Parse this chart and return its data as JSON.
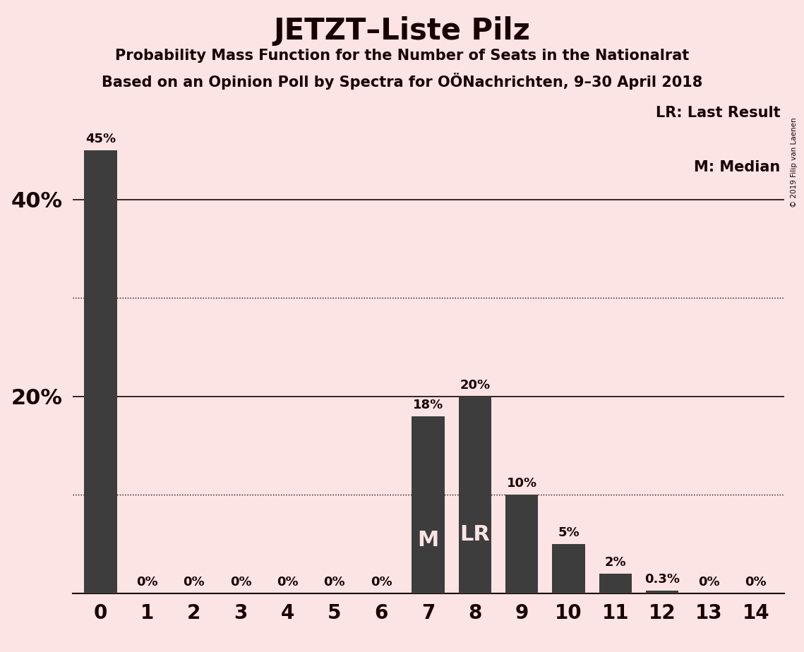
{
  "title": "JETZT–Liste Pilz",
  "subtitle1": "Probability Mass Function for the Number of Seats in the Nationalrat",
  "subtitle2": "Based on an Opinion Poll by Spectra for OÖNachrichten, 9–30 April 2018",
  "copyright": "© 2019 Filip van Laenen",
  "categories": [
    0,
    1,
    2,
    3,
    4,
    5,
    6,
    7,
    8,
    9,
    10,
    11,
    12,
    13,
    14
  ],
  "values": [
    0.45,
    0.0,
    0.0,
    0.0,
    0.0,
    0.0,
    0.0,
    0.18,
    0.2,
    0.1,
    0.05,
    0.02,
    0.003,
    0.0,
    0.0
  ],
  "bar_labels": [
    "45%",
    "0%",
    "0%",
    "0%",
    "0%",
    "0%",
    "0%",
    "18%",
    "20%",
    "10%",
    "5%",
    "2%",
    "0.3%",
    "0%",
    "0%"
  ],
  "bar_color": "#3d3d3d",
  "background_color": "#fce4e4",
  "text_color": "#1a0000",
  "median_bar": 7,
  "last_result_bar": 8,
  "legend_lr": "LR: Last Result",
  "legend_m": "M: Median",
  "solid_lines": [
    0.2,
    0.4
  ],
  "dotted_lines": [
    0.1,
    0.3
  ],
  "ylim": [
    0,
    0.5
  ]
}
